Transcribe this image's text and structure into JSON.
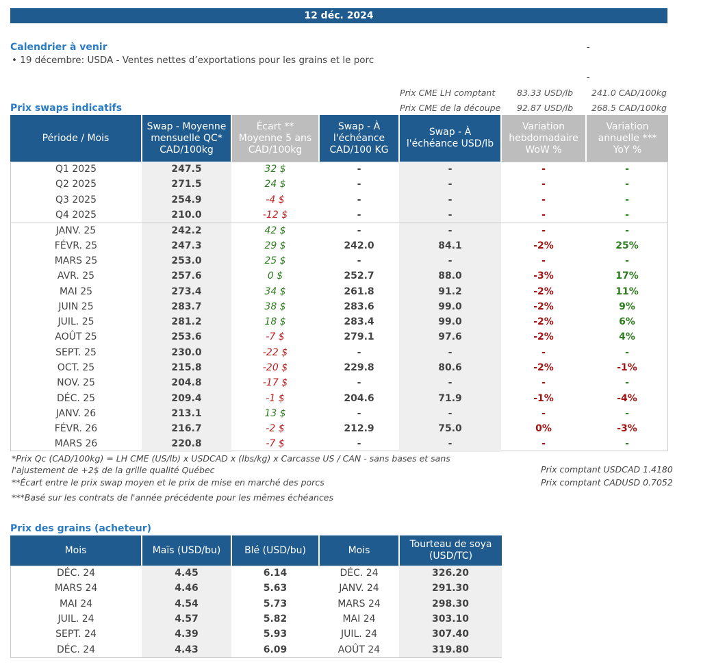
{
  "banner": {
    "date": "12 déc. 2024"
  },
  "calendar": {
    "title": "Calendrier à venir",
    "item": "• 19 décembre: USDA - Ventes nettes d’exportations pour les grains et le porc",
    "dash": "-"
  },
  "cme": {
    "lh_label": "Prix CME LH comptant",
    "lh_usd": "83.33 USD/lb",
    "lh_cad": "241.0 CAD/100kg",
    "cut_label": "Prix CME de la découpe",
    "cut_usd": "92.87 USD/lb",
    "cut_cad": "268.5 CAD/100kg"
  },
  "swaps": {
    "title": "Prix swaps indicatifs",
    "headers": [
      "Période / Mois",
      "Swap - Moyenne mensuelle QC* CAD/100kg",
      "Écart ** Moyenne 5 ans CAD/100kg",
      "Swap - À l'échéance CAD/100 KG",
      "Swap - À l'échéance USD/lb",
      "Variation hebdomadaire WoW %",
      "Variation annuelle *** YoY %"
    ],
    "rows": [
      [
        "Q1 2025",
        "247.5",
        "32 $",
        "-",
        "-",
        "-",
        "-"
      ],
      [
        "Q2 2025",
        "271.5",
        "24 $",
        "-",
        "-",
        "-",
        "-"
      ],
      [
        "Q3 2025",
        "254.9",
        "-4 $",
        "-",
        "-",
        "-",
        "-"
      ],
      [
        "Q4 2025",
        "210.0",
        "-12 $",
        "-",
        "-",
        "-",
        "-"
      ],
      [
        "JANV. 25",
        "242.2",
        "42 $",
        "-",
        "-",
        "-",
        "-"
      ],
      [
        "FÉVR. 25",
        "247.3",
        "29 $",
        "242.0",
        "84.1",
        "-2%",
        "25%"
      ],
      [
        "MARS 25",
        "253.0",
        "25 $",
        "-",
        "-",
        "-",
        "-"
      ],
      [
        "AVR. 25",
        "257.6",
        "0 $",
        "252.7",
        "88.0",
        "-3%",
        "17%"
      ],
      [
        "MAI 25",
        "273.4",
        "34 $",
        "261.8",
        "91.2",
        "-2%",
        "11%"
      ],
      [
        "JUIN 25",
        "283.7",
        "38 $",
        "283.6",
        "99.0",
        "-2%",
        "9%"
      ],
      [
        "JUIL. 25",
        "281.2",
        "18 $",
        "283.4",
        "99.0",
        "-2%",
        "6%"
      ],
      [
        "AOÛT 25",
        "253.6",
        "-7 $",
        "279.1",
        "97.6",
        "-2%",
        "4%"
      ],
      [
        "SEPT. 25",
        "230.0",
        "-22 $",
        "-",
        "-",
        "-",
        "-"
      ],
      [
        "OCT. 25",
        "215.8",
        "-20 $",
        "229.8",
        "80.6",
        "-2%",
        "-1%"
      ],
      [
        "NOV. 25",
        "204.8",
        "-17 $",
        "-",
        "-",
        "-",
        "-"
      ],
      [
        "DÉC. 25",
        "209.4",
        "-1 $",
        "204.6",
        "71.9",
        "-1%",
        "-4%"
      ],
      [
        "JANV. 26",
        "213.1",
        "13 $",
        "-",
        "-",
        "-",
        "-"
      ],
      [
        "FÉVR. 26",
        "216.7",
        "-2 $",
        "212.9",
        "75.0",
        "0%",
        "-3%"
      ],
      [
        "MARS 26",
        "220.8",
        "-7 $",
        "-",
        "-",
        "-",
        "-"
      ]
    ]
  },
  "notes": {
    "n1": "*Prix Qc (CAD/100kg) = LH CME (US/lb) x USDCAD x (lbs/kg) x Carcasse US / CAN - sans bases et sans l'ajustement de +2$ de la grille qualité Québec",
    "n2": "**Écart entre le prix swap moyen et le prix de mise en marché des porcs",
    "n3": "***Basé sur les contrats de l'année précédente pour les mêmes échéances",
    "fx1": "Prix comptant USDCAD 1.4180",
    "fx2": "Prix comptant CADUSD 0.7052"
  },
  "grains": {
    "title": "Prix des grains (acheteur)",
    "headers": [
      "Mois",
      "Maïs (USD/bu)",
      "Blé (USD/bu)",
      "Mois",
      "Tourteau de soya (USD/TC)"
    ],
    "rows": [
      [
        "DÉC. 24",
        "4.45",
        "6.14",
        "DÉC. 24",
        "326.20"
      ],
      [
        "MARS 24",
        "4.46",
        "5.63",
        "JANV. 24",
        "291.30"
      ],
      [
        "MAI 24",
        "4.54",
        "5.73",
        "MARS 24",
        "298.30"
      ],
      [
        "JUIL. 24",
        "4.57",
        "5.82",
        "MAI 24",
        "303.10"
      ],
      [
        "SEPT. 24",
        "4.39",
        "5.93",
        "JUIL. 24",
        "307.40"
      ],
      [
        "DÉC. 24",
        "4.43",
        "6.09",
        "AOÛT 24",
        "319.80"
      ]
    ]
  },
  "colors": {
    "header_blue": "#1f5b8e",
    "title_blue": "#2b7bc2",
    "positive": "#2e7d1f",
    "negative": "#c01e1e"
  }
}
